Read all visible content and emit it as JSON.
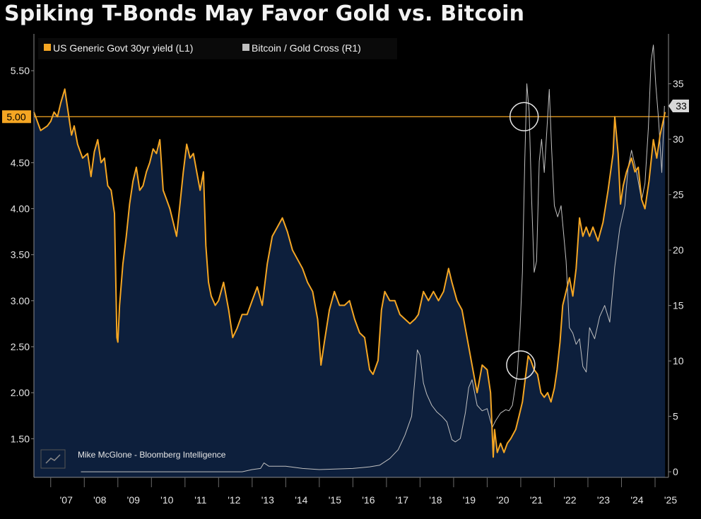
{
  "chart_data": {
    "type": "line",
    "title": "Spiking T-Bonds May Favor Gold vs. Bitcoin",
    "credit": "Mike McGlone - Bloomberg Intelligence",
    "x_range": [
      2006.5,
      2025.4
    ],
    "x_ticks": [
      {
        "label": "'07",
        "year": 2007
      },
      {
        "label": "'08",
        "year": 2008
      },
      {
        "label": "'09",
        "year": 2009
      },
      {
        "label": "'10",
        "year": 2010
      },
      {
        "label": "'11",
        "year": 2011
      },
      {
        "label": "'12",
        "year": 2012
      },
      {
        "label": "'13",
        "year": 2013
      },
      {
        "label": "'14",
        "year": 2014
      },
      {
        "label": "'15",
        "year": 2015
      },
      {
        "label": "'16",
        "year": 2016
      },
      {
        "label": "'17",
        "year": 2017
      },
      {
        "label": "'18",
        "year": 2018
      },
      {
        "label": "'19",
        "year": 2019
      },
      {
        "label": "'20",
        "year": 2020
      },
      {
        "label": "'21",
        "year": 2021
      },
      {
        "label": "'22",
        "year": 2022
      },
      {
        "label": "'23",
        "year": 2023
      },
      {
        "label": "'24",
        "year": 2024
      },
      {
        "label": "'25",
        "year": 2025
      }
    ],
    "left_axis": {
      "range": [
        1.08,
        5.9
      ],
      "ticks": [
        "1.50",
        "2.00",
        "2.50",
        "3.00",
        "3.50",
        "4.00",
        "4.50",
        "5.50"
      ],
      "tick_values": [
        1.5,
        2.0,
        2.5,
        3.0,
        3.5,
        4.0,
        4.5,
        5.5
      ]
    },
    "right_axis": {
      "range": [
        -0.5,
        39.5
      ],
      "ticks": [
        "0",
        "5",
        "10",
        "15",
        "20",
        "25",
        "30",
        "35"
      ],
      "tick_values": [
        0,
        5,
        10,
        15,
        20,
        25,
        30,
        35
      ]
    },
    "reference_line": {
      "value": 5.0,
      "label": "5.00",
      "axis": "left",
      "color": "#f5a623"
    },
    "last_value_badge": {
      "label": "33",
      "value": 33,
      "axis": "right"
    },
    "annotations": [
      {
        "kind": "circle",
        "x": 2021.1,
        "y_left": 5.0
      },
      {
        "kind": "circle",
        "x": 2021.0,
        "y_left": 2.3
      }
    ],
    "series": [
      {
        "name": "US Generic Govt 30yr yield (L1)",
        "axis": "left",
        "color": "#f5a623",
        "fill": "#0d1f3c",
        "points": [
          [
            2006.5,
            5.05
          ],
          [
            2006.7,
            4.85
          ],
          [
            2006.9,
            4.9
          ],
          [
            2007.0,
            4.95
          ],
          [
            2007.1,
            5.05
          ],
          [
            2007.2,
            5.0
          ],
          [
            2007.3,
            5.15
          ],
          [
            2007.42,
            5.3
          ],
          [
            2007.5,
            5.1
          ],
          [
            2007.62,
            4.8
          ],
          [
            2007.7,
            4.9
          ],
          [
            2007.8,
            4.7
          ],
          [
            2007.95,
            4.55
          ],
          [
            2008.1,
            4.6
          ],
          [
            2008.2,
            4.35
          ],
          [
            2008.3,
            4.62
          ],
          [
            2008.4,
            4.75
          ],
          [
            2008.5,
            4.5
          ],
          [
            2008.6,
            4.55
          ],
          [
            2008.7,
            4.25
          ],
          [
            2008.8,
            4.2
          ],
          [
            2008.9,
            3.95
          ],
          [
            2008.95,
            3.0
          ],
          [
            2008.97,
            2.6
          ],
          [
            2009.0,
            2.55
          ],
          [
            2009.05,
            2.95
          ],
          [
            2009.15,
            3.4
          ],
          [
            2009.25,
            3.7
          ],
          [
            2009.35,
            4.05
          ],
          [
            2009.45,
            4.3
          ],
          [
            2009.55,
            4.45
          ],
          [
            2009.65,
            4.2
          ],
          [
            2009.75,
            4.25
          ],
          [
            2009.85,
            4.4
          ],
          [
            2009.95,
            4.5
          ],
          [
            2010.05,
            4.65
          ],
          [
            2010.15,
            4.6
          ],
          [
            2010.25,
            4.75
          ],
          [
            2010.35,
            4.2
          ],
          [
            2010.45,
            4.1
          ],
          [
            2010.55,
            4.0
          ],
          [
            2010.65,
            3.85
          ],
          [
            2010.75,
            3.7
          ],
          [
            2010.85,
            4.05
          ],
          [
            2010.95,
            4.4
          ],
          [
            2011.05,
            4.7
          ],
          [
            2011.15,
            4.55
          ],
          [
            2011.25,
            4.6
          ],
          [
            2011.35,
            4.4
          ],
          [
            2011.45,
            4.2
          ],
          [
            2011.55,
            4.4
          ],
          [
            2011.62,
            3.6
          ],
          [
            2011.7,
            3.2
          ],
          [
            2011.78,
            3.05
          ],
          [
            2011.9,
            2.95
          ],
          [
            2012.0,
            3.0
          ],
          [
            2012.15,
            3.2
          ],
          [
            2012.3,
            2.9
          ],
          [
            2012.42,
            2.6
          ],
          [
            2012.55,
            2.7
          ],
          [
            2012.7,
            2.85
          ],
          [
            2012.85,
            2.85
          ],
          [
            2013.0,
            3.0
          ],
          [
            2013.15,
            3.15
          ],
          [
            2013.3,
            2.95
          ],
          [
            2013.45,
            3.4
          ],
          [
            2013.6,
            3.7
          ],
          [
            2013.75,
            3.8
          ],
          [
            2013.9,
            3.9
          ],
          [
            2014.05,
            3.75
          ],
          [
            2014.2,
            3.55
          ],
          [
            2014.35,
            3.45
          ],
          [
            2014.5,
            3.35
          ],
          [
            2014.65,
            3.2
          ],
          [
            2014.8,
            3.1
          ],
          [
            2014.95,
            2.8
          ],
          [
            2015.05,
            2.3
          ],
          [
            2015.15,
            2.55
          ],
          [
            2015.3,
            2.9
          ],
          [
            2015.45,
            3.1
          ],
          [
            2015.6,
            2.95
          ],
          [
            2015.75,
            2.95
          ],
          [
            2015.9,
            3.0
          ],
          [
            2016.05,
            2.8
          ],
          [
            2016.2,
            2.65
          ],
          [
            2016.35,
            2.6
          ],
          [
            2016.5,
            2.25
          ],
          [
            2016.6,
            2.2
          ],
          [
            2016.75,
            2.35
          ],
          [
            2016.85,
            2.9
          ],
          [
            2016.95,
            3.1
          ],
          [
            2017.1,
            3.0
          ],
          [
            2017.25,
            3.0
          ],
          [
            2017.4,
            2.85
          ],
          [
            2017.55,
            2.8
          ],
          [
            2017.7,
            2.75
          ],
          [
            2017.85,
            2.8
          ],
          [
            2017.95,
            2.85
          ],
          [
            2018.1,
            3.1
          ],
          [
            2018.25,
            3.0
          ],
          [
            2018.4,
            3.1
          ],
          [
            2018.55,
            3.0
          ],
          [
            2018.7,
            3.1
          ],
          [
            2018.85,
            3.35
          ],
          [
            2018.95,
            3.2
          ],
          [
            2019.1,
            3.0
          ],
          [
            2019.25,
            2.9
          ],
          [
            2019.4,
            2.6
          ],
          [
            2019.55,
            2.3
          ],
          [
            2019.7,
            2.0
          ],
          [
            2019.85,
            2.3
          ],
          [
            2020.0,
            2.25
          ],
          [
            2020.1,
            2.0
          ],
          [
            2020.18,
            1.3
          ],
          [
            2020.22,
            1.6
          ],
          [
            2020.3,
            1.35
          ],
          [
            2020.4,
            1.45
          ],
          [
            2020.5,
            1.35
          ],
          [
            2020.6,
            1.45
          ],
          [
            2020.7,
            1.5
          ],
          [
            2020.85,
            1.6
          ],
          [
            2020.95,
            1.75
          ],
          [
            2021.05,
            1.9
          ],
          [
            2021.15,
            2.2
          ],
          [
            2021.22,
            2.4
          ],
          [
            2021.3,
            2.35
          ],
          [
            2021.4,
            2.25
          ],
          [
            2021.5,
            2.2
          ],
          [
            2021.6,
            2.0
          ],
          [
            2021.7,
            1.95
          ],
          [
            2021.8,
            2.0
          ],
          [
            2021.9,
            1.9
          ],
          [
            2022.0,
            2.05
          ],
          [
            2022.08,
            2.25
          ],
          [
            2022.17,
            2.55
          ],
          [
            2022.25,
            2.95
          ],
          [
            2022.35,
            3.1
          ],
          [
            2022.45,
            3.25
          ],
          [
            2022.55,
            3.05
          ],
          [
            2022.65,
            3.35
          ],
          [
            2022.75,
            3.9
          ],
          [
            2022.85,
            3.7
          ],
          [
            2022.95,
            3.8
          ],
          [
            2023.05,
            3.7
          ],
          [
            2023.15,
            3.8
          ],
          [
            2023.3,
            3.65
          ],
          [
            2023.45,
            3.85
          ],
          [
            2023.6,
            4.2
          ],
          [
            2023.75,
            4.6
          ],
          [
            2023.8,
            5.0
          ],
          [
            2023.9,
            4.6
          ],
          [
            2023.97,
            4.05
          ],
          [
            2024.05,
            4.25
          ],
          [
            2024.15,
            4.4
          ],
          [
            2024.3,
            4.55
          ],
          [
            2024.4,
            4.4
          ],
          [
            2024.5,
            4.45
          ],
          [
            2024.6,
            4.1
          ],
          [
            2024.7,
            4.0
          ],
          [
            2024.82,
            4.3
          ],
          [
            2024.95,
            4.75
          ],
          [
            2025.05,
            4.55
          ],
          [
            2025.15,
            4.8
          ],
          [
            2025.3,
            5.05
          ]
        ]
      },
      {
        "name": "Bitcoin / Gold Cross (R1)",
        "axis": "right",
        "color": "#c0c0c0",
        "points": [
          [
            2007.9,
            0.0
          ],
          [
            2012.7,
            0.0
          ],
          [
            2013.0,
            0.2
          ],
          [
            2013.25,
            0.3
          ],
          [
            2013.35,
            0.8
          ],
          [
            2013.5,
            0.5
          ],
          [
            2014.0,
            0.5
          ],
          [
            2014.5,
            0.3
          ],
          [
            2015.0,
            0.2
          ],
          [
            2016.0,
            0.3
          ],
          [
            2016.5,
            0.45
          ],
          [
            2016.8,
            0.6
          ],
          [
            2017.1,
            1.2
          ],
          [
            2017.35,
            2.0
          ],
          [
            2017.55,
            3.3
          ],
          [
            2017.75,
            5.0
          ],
          [
            2017.85,
            8.5
          ],
          [
            2017.92,
            11.0
          ],
          [
            2018.0,
            10.5
          ],
          [
            2018.1,
            8.0
          ],
          [
            2018.2,
            7.0
          ],
          [
            2018.35,
            6.0
          ],
          [
            2018.5,
            5.4
          ],
          [
            2018.65,
            5.0
          ],
          [
            2018.8,
            4.5
          ],
          [
            2018.95,
            2.9
          ],
          [
            2019.05,
            2.7
          ],
          [
            2019.2,
            3.0
          ],
          [
            2019.35,
            5.3
          ],
          [
            2019.45,
            7.6
          ],
          [
            2019.55,
            8.3
          ],
          [
            2019.7,
            6.0
          ],
          [
            2019.85,
            5.5
          ],
          [
            2020.0,
            5.7
          ],
          [
            2020.15,
            4.0
          ],
          [
            2020.25,
            4.6
          ],
          [
            2020.4,
            5.3
          ],
          [
            2020.55,
            5.6
          ],
          [
            2020.65,
            5.5
          ],
          [
            2020.75,
            6.0
          ],
          [
            2020.9,
            9.0
          ],
          [
            2020.98,
            13.0
          ],
          [
            2021.05,
            18.0
          ],
          [
            2021.12,
            28.0
          ],
          [
            2021.18,
            35.0
          ],
          [
            2021.25,
            32.5
          ],
          [
            2021.32,
            25.0
          ],
          [
            2021.4,
            18.0
          ],
          [
            2021.47,
            19.0
          ],
          [
            2021.55,
            28.0
          ],
          [
            2021.62,
            30.0
          ],
          [
            2021.7,
            27.0
          ],
          [
            2021.8,
            32.0
          ],
          [
            2021.85,
            34.5
          ],
          [
            2021.92,
            29.0
          ],
          [
            2022.0,
            24.0
          ],
          [
            2022.1,
            23.0
          ],
          [
            2022.2,
            24.0
          ],
          [
            2022.35,
            19.0
          ],
          [
            2022.45,
            13.0
          ],
          [
            2022.55,
            12.5
          ],
          [
            2022.65,
            11.5
          ],
          [
            2022.75,
            12.0
          ],
          [
            2022.85,
            9.5
          ],
          [
            2022.95,
            9.0
          ],
          [
            2023.05,
            13.0
          ],
          [
            2023.2,
            12.0
          ],
          [
            2023.35,
            14.0
          ],
          [
            2023.5,
            15.0
          ],
          [
            2023.65,
            13.5
          ],
          [
            2023.8,
            18.5
          ],
          [
            2023.95,
            22.0
          ],
          [
            2024.1,
            24.0
          ],
          [
            2024.2,
            27.5
          ],
          [
            2024.3,
            29.0
          ],
          [
            2024.45,
            27.0
          ],
          [
            2024.6,
            24.5
          ],
          [
            2024.7,
            26.0
          ],
          [
            2024.8,
            31.0
          ],
          [
            2024.88,
            37.0
          ],
          [
            2024.95,
            38.5
          ],
          [
            2025.02,
            35.0
          ],
          [
            2025.1,
            32.0
          ],
          [
            2025.2,
            27.0
          ],
          [
            2025.28,
            33.0
          ]
        ]
      }
    ]
  }
}
